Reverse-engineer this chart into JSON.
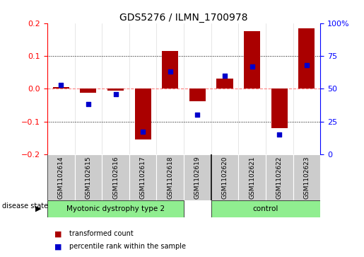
{
  "title": "GDS5276 / ILMN_1700978",
  "samples": [
    "GSM1102614",
    "GSM1102615",
    "GSM1102616",
    "GSM1102617",
    "GSM1102618",
    "GSM1102619",
    "GSM1102620",
    "GSM1102621",
    "GSM1102622",
    "GSM1102623"
  ],
  "red_bars": [
    0.005,
    -0.012,
    -0.006,
    -0.155,
    0.115,
    -0.038,
    0.03,
    0.175,
    -0.12,
    0.185
  ],
  "blue_dots_pct": [
    53,
    38,
    46,
    17,
    63,
    30,
    60,
    67,
    15,
    68
  ],
  "groups": [
    {
      "label": "Myotonic dystrophy type 2",
      "start": 0,
      "end": 5,
      "color": "#90EE90"
    },
    {
      "label": "control",
      "start": 6,
      "end": 9,
      "color": "#90EE90"
    }
  ],
  "group_sep_idx": 5.5,
  "ylim": [
    -0.2,
    0.2
  ],
  "y2lim": [
    0,
    100
  ],
  "y_ticks_left": [
    -0.2,
    -0.1,
    0.0,
    0.1,
    0.2
  ],
  "y_ticks_right": [
    0,
    25,
    50,
    75,
    100
  ],
  "bar_color": "#AA0000",
  "dot_color": "#0000CC",
  "zero_line_color": "#FF8080",
  "grid_color": "#000000",
  "bg_label_area": "#CCCCCC",
  "label_fontsize": 6.5,
  "title_fontsize": 10
}
